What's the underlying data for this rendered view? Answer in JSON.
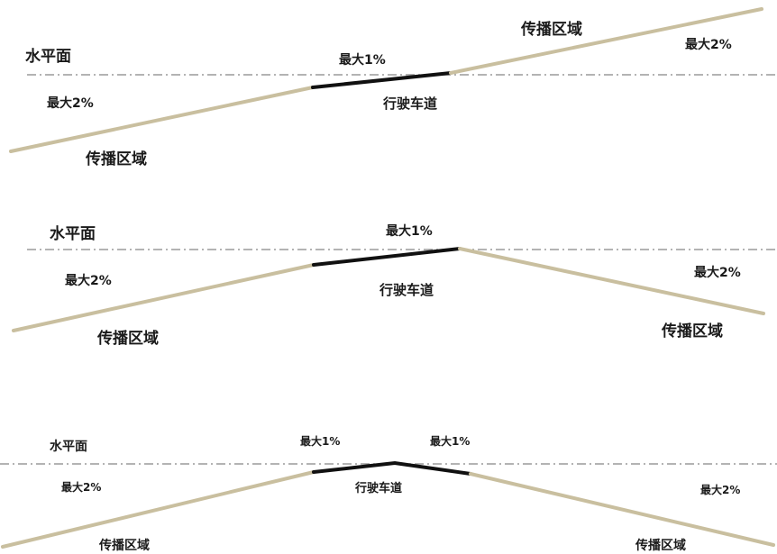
{
  "colors": {
    "shoulder": "#c9bf9f",
    "carriageway": "#111111",
    "horizon": "#9a9a9a",
    "text": "#1a1a1a"
  },
  "panels": [
    {
      "horizon_label": "水平面",
      "shoulder_slope_left": "最大2%",
      "shoulder_slope_right": "最大2%",
      "lane_slope": "最大1%",
      "carriageway_label": "行驶车道",
      "spread_area_left": "传播区域",
      "spread_area_right": "传播区域"
    },
    {
      "horizon_label": "水平面",
      "shoulder_slope_left": "最大2%",
      "shoulder_slope_right": "最大2%",
      "lane_slope": "最大1%",
      "carriageway_label": "行驶车道",
      "spread_area_left": "传播区域",
      "spread_area_right": "传播区域"
    },
    {
      "horizon_label": "水平面",
      "shoulder_slope_left": "最大2%",
      "shoulder_slope_right": "最大2%",
      "lane_slope_left": "最大1%",
      "lane_slope_right": "最大1%",
      "carriageway_label": "行驶车道",
      "spread_area_left": "传播区域",
      "spread_area_right": "传播区域"
    }
  ]
}
